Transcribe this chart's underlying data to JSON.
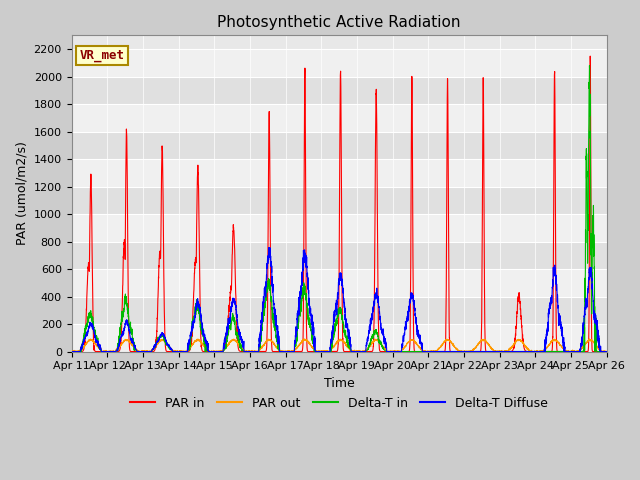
{
  "title": "Photosynthetic Active Radiation",
  "ylabel": "PAR (umol/m2/s)",
  "xlabel": "Time",
  "ylim": [
    0,
    2300
  ],
  "yticks": [
    0,
    200,
    400,
    600,
    800,
    1000,
    1200,
    1400,
    1600,
    1800,
    2000,
    2200
  ],
  "xtick_labels": [
    "Apr 11",
    "Apr 12",
    "Apr 13",
    "Apr 14",
    "Apr 15",
    "Apr 16",
    "Apr 17",
    "Apr 18",
    "Apr 19",
    "Apr 20",
    "Apr 21",
    "Apr 22",
    "Apr 23",
    "Apr 24",
    "Apr 25",
    "Apr 26"
  ],
  "par_in_color": "#ff0000",
  "par_out_color": "#ff9900",
  "delta_t_in_color": "#00bb00",
  "delta_t_diff_color": "#0000ff",
  "annotation_text": "VR_met",
  "annotation_color": "#8b0000",
  "annotation_bg": "#ffffcc",
  "annotation_edge": "#aa8800",
  "fig_bg": "#cccccc",
  "plot_bg": "#e8e8e8",
  "band_color_light": "#f0f0f0",
  "band_color_dark": "#e0e0e0",
  "grid_color": "#ffffff",
  "title_fontsize": 11,
  "label_fontsize": 9,
  "tick_fontsize": 8,
  "line_width": 0.8
}
